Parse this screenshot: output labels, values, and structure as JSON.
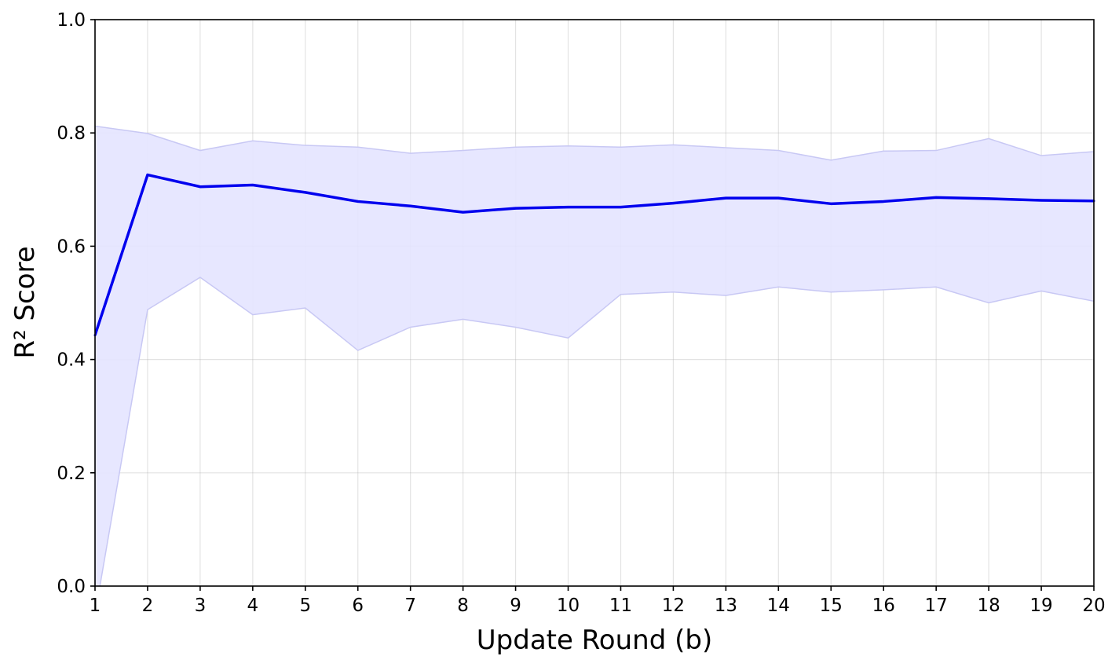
{
  "chart_data": {
    "type": "line",
    "xlabel": "Update Round (b)",
    "ylabel": "R² Score",
    "xlim": [
      1,
      20
    ],
    "ylim": [
      0.0,
      1.0
    ],
    "grid": true,
    "x_ticks": [
      "1",
      "2",
      "3",
      "4",
      "5",
      "6",
      "7",
      "8",
      "9",
      "10",
      "11",
      "12",
      "13",
      "14",
      "15",
      "16",
      "17",
      "18",
      "19",
      "20"
    ],
    "y_ticks": [
      "0.0",
      "0.2",
      "0.4",
      "0.6",
      "0.8",
      "1.0"
    ],
    "x": [
      1,
      2,
      3,
      4,
      5,
      6,
      7,
      8,
      9,
      10,
      11,
      12,
      13,
      14,
      15,
      16,
      17,
      18,
      19,
      20
    ],
    "series": [
      {
        "values": [
          0.443,
          0.726,
          0.705,
          0.708,
          0.695,
          0.679,
          0.671,
          0.66,
          0.667,
          0.669,
          0.669,
          0.676,
          0.685,
          0.685,
          0.675,
          0.679,
          0.686,
          0.684,
          0.681,
          0.68
        ],
        "color": "#0000ee"
      }
    ],
    "band": {
      "lower": [
        -0.05,
        0.488,
        0.545,
        0.479,
        0.491,
        0.416,
        0.457,
        0.471,
        0.457,
        0.438,
        0.515,
        0.519,
        0.513,
        0.528,
        0.519,
        0.523,
        0.528,
        0.5,
        0.521,
        0.503
      ],
      "upper": [
        0.812,
        0.799,
        0.769,
        0.786,
        0.778,
        0.775,
        0.764,
        0.769,
        0.775,
        0.777,
        0.775,
        0.779,
        0.774,
        0.769,
        0.752,
        0.768,
        0.769,
        0.79,
        0.76,
        0.767
      ],
      "fill_color": "#e4e4ff",
      "edge_color": "#c8c8f4"
    }
  }
}
